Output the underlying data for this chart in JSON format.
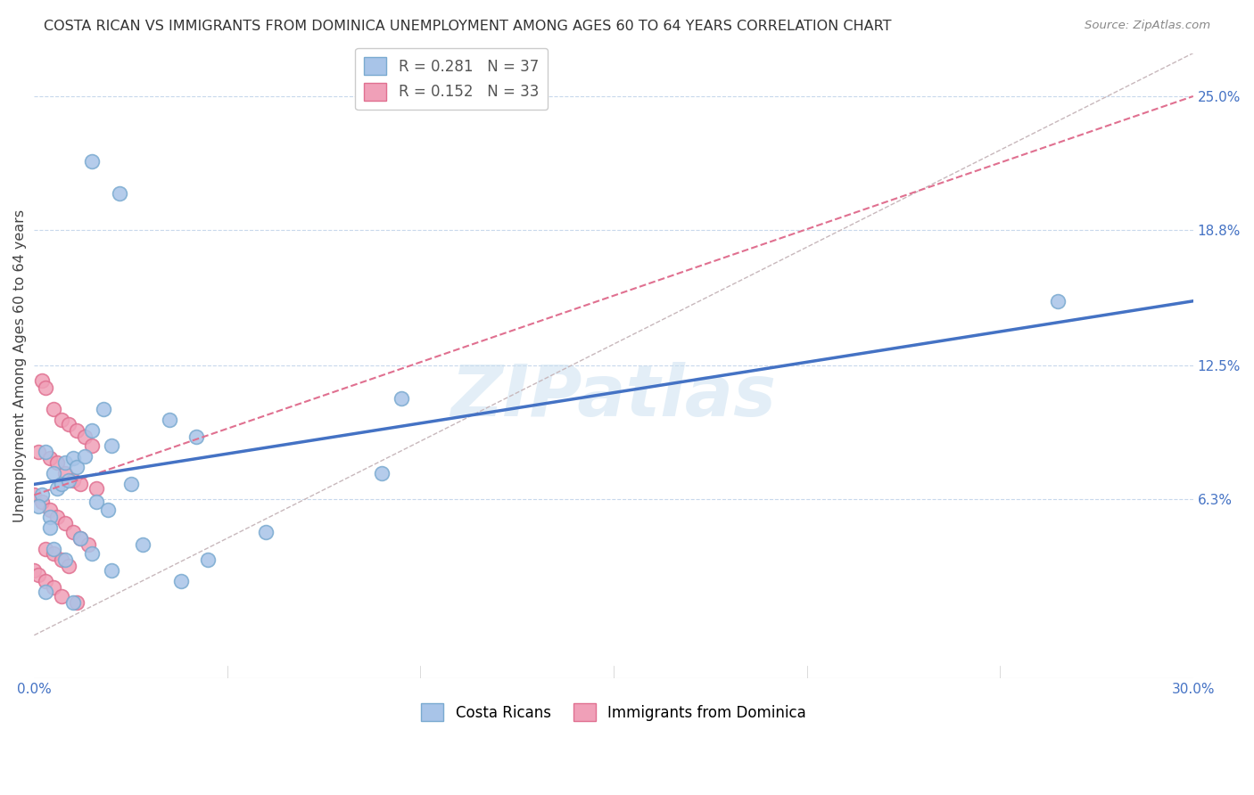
{
  "title": "COSTA RICAN VS IMMIGRANTS FROM DOMINICA UNEMPLOYMENT AMONG AGES 60 TO 64 YEARS CORRELATION CHART",
  "source": "Source: ZipAtlas.com",
  "ylabel": "Unemployment Among Ages 60 to 64 years",
  "xlim": [
    0,
    30
  ],
  "ylim": [
    -2,
    27
  ],
  "ytick_right_values": [
    6.3,
    12.5,
    18.8,
    25.0
  ],
  "ytick_right_labels": [
    "6.3%",
    "12.5%",
    "18.8%",
    "25.0%"
  ],
  "blue_line_color": "#4472C4",
  "pink_line_color": "#e07090",
  "diagonal_line_color": "#d0a0a8",
  "dot_blue": "#a8c4e8",
  "dot_pink": "#f0a0b8",
  "dot_blue_edge": "#7aaad0",
  "dot_pink_edge": "#e07090",
  "watermark_text": "ZIPatlas",
  "background_color": "#ffffff",
  "costa_rican_x": [
    1.5,
    2.2,
    0.3,
    0.5,
    0.8,
    1.0,
    1.5,
    1.8,
    2.0,
    0.2,
    0.4,
    0.6,
    0.7,
    0.9,
    1.1,
    1.3,
    1.6,
    1.9,
    0.1,
    3.5,
    4.2,
    9.5,
    26.5,
    0.5,
    0.8,
    1.2,
    1.5,
    2.0,
    2.8,
    3.8,
    6.0,
    0.3,
    1.0,
    2.5,
    4.5,
    9.0,
    0.4
  ],
  "costa_rican_y": [
    22.0,
    20.5,
    8.5,
    7.5,
    8.0,
    8.2,
    9.5,
    10.5,
    8.8,
    6.5,
    5.5,
    6.8,
    7.0,
    7.2,
    7.8,
    8.3,
    6.2,
    5.8,
    6.0,
    10.0,
    9.2,
    11.0,
    15.5,
    4.0,
    3.5,
    4.5,
    3.8,
    3.0,
    4.2,
    2.5,
    4.8,
    2.0,
    1.5,
    7.0,
    3.5,
    7.5,
    5.0
  ],
  "dominica_x": [
    0.2,
    0.3,
    0.5,
    0.7,
    0.9,
    1.1,
    1.3,
    1.5,
    0.1,
    0.4,
    0.6,
    0.8,
    1.0,
    1.2,
    1.6,
    0.0,
    0.2,
    0.4,
    0.6,
    0.8,
    1.0,
    1.2,
    1.4,
    0.3,
    0.5,
    0.7,
    0.9,
    0.0,
    0.1,
    0.3,
    0.5,
    0.7,
    1.1
  ],
  "dominica_y": [
    11.8,
    11.5,
    10.5,
    10.0,
    9.8,
    9.5,
    9.2,
    8.8,
    8.5,
    8.2,
    8.0,
    7.5,
    7.2,
    7.0,
    6.8,
    6.5,
    6.2,
    5.8,
    5.5,
    5.2,
    4.8,
    4.5,
    4.2,
    4.0,
    3.8,
    3.5,
    3.2,
    3.0,
    2.8,
    2.5,
    2.2,
    1.8,
    1.5
  ]
}
